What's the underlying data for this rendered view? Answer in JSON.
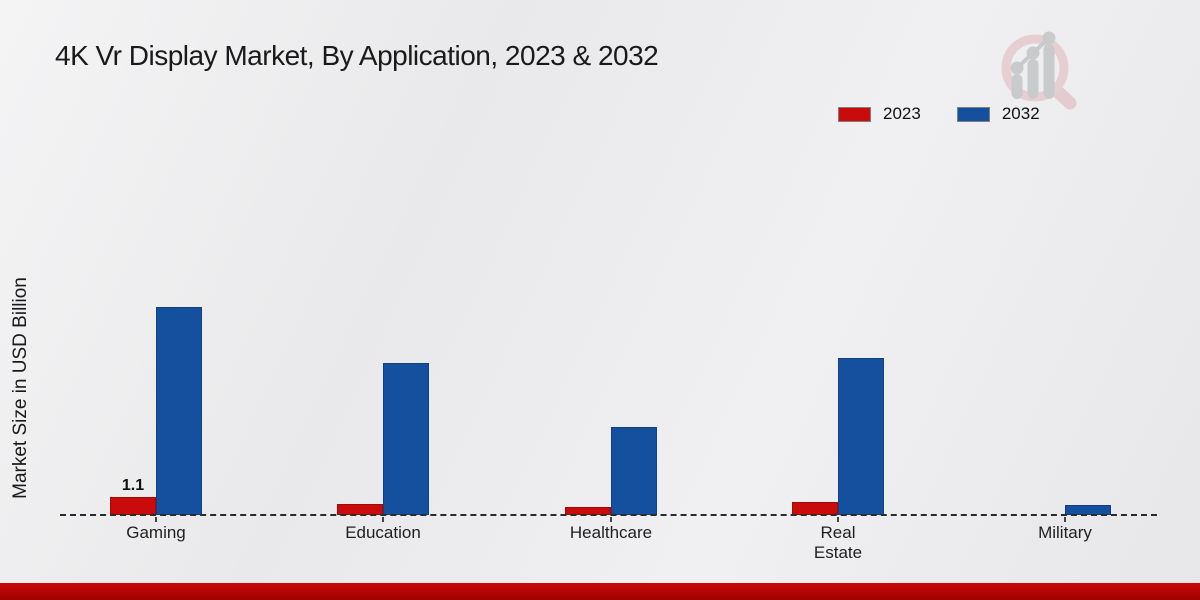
{
  "header": {
    "title": "4K Vr Display Market, By Application, 2023 & 2032"
  },
  "legend": {
    "items": [
      {
        "label": "2023",
        "color": "#c90b0c"
      },
      {
        "label": "2032",
        "color": "#15509e"
      }
    ]
  },
  "brand": {
    "logo_icon": "magnifier-growth-chart-logo"
  },
  "chart_data": {
    "type": "bar",
    "title": "4K Vr Display Market, By Application, 2023 & 2032",
    "xlabel": "",
    "ylabel": "Market Size in USD Billion",
    "categories": [
      "Gaming",
      "Education",
      "Healthcare",
      "Real Estate",
      "Military"
    ],
    "category_lines": [
      [
        "Gaming"
      ],
      [
        "Education"
      ],
      [
        "Healthcare"
      ],
      [
        "Real",
        "Estate"
      ],
      [
        "Military"
      ]
    ],
    "series": [
      {
        "name": "2023",
        "color": "#c90b0c",
        "values": [
          1.1,
          0.7,
          0.5,
          0.8,
          0
        ]
      },
      {
        "name": "2032",
        "color": "#15509e",
        "values": [
          12.7,
          9.3,
          5.4,
          9.6,
          0.6
        ]
      }
    ],
    "bar_labels": [
      {
        "category_index": 0,
        "series_index": 0,
        "text": "1.1"
      }
    ],
    "ylim": [
      0,
      13
    ],
    "grid": false,
    "axis_tick_labels_visible": false,
    "baseline_style": "dashed",
    "legend_position": "top-right"
  },
  "footer": {
    "band_color": "#b30404"
  }
}
